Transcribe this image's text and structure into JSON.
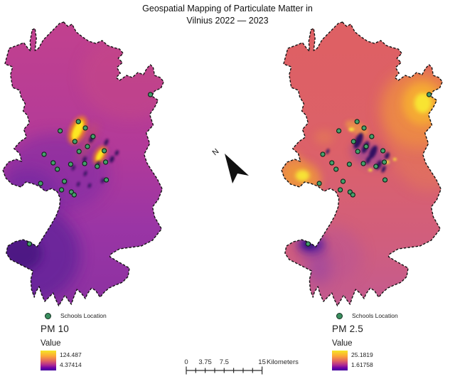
{
  "title": "Geospatial Mapping of Particulate Matter in Vilnius 2022 — 2023",
  "north_label": "N",
  "maps": [
    {
      "name": "PM 10",
      "legend": {
        "schools_label": "Schools Location",
        "value_label": "Value",
        "max": "124.487",
        "min": "4.37414"
      }
    },
    {
      "name": "PM 2.5",
      "legend": {
        "schools_label": "Schools Location",
        "value_label": "Value",
        "max": "25.1819",
        "min": "1.61758"
      }
    }
  ],
  "scale_bar": {
    "tick_labels": [
      "0",
      "3.75",
      "7.5",
      "15"
    ],
    "unit": "Kilometers"
  },
  "schools_xy": [
    [
      112,
      143
    ],
    [
      122,
      152
    ],
    [
      86,
      156
    ],
    [
      133,
      164
    ],
    [
      107,
      171
    ],
    [
      125,
      178
    ],
    [
      113,
      185
    ],
    [
      149,
      184
    ],
    [
      63,
      189
    ],
    [
      76,
      201
    ],
    [
      101,
      203
    ],
    [
      121,
      202
    ],
    [
      139,
      206
    ],
    [
      151,
      200
    ],
    [
      82,
      210
    ],
    [
      92,
      227
    ],
    [
      152,
      225
    ],
    [
      58,
      230
    ],
    [
      88,
      239
    ],
    [
      102,
      242
    ],
    [
      106,
      246
    ],
    [
      42,
      315
    ],
    [
      215,
      105
    ]
  ],
  "colors": {
    "school_dot": "#44a06b",
    "boundary": "#141414",
    "ramp": [
      "#f5e626",
      "#fca636",
      "#e16462",
      "#b12a90",
      "#6a00a8",
      "#41049d"
    ],
    "pm10_base": [
      "#c2418e",
      "#8c31a1"
    ],
    "pm25_base": [
      "#de6063",
      "#c35a90"
    ],
    "hotspot": "#fce724"
  },
  "chart_data": {
    "type": "heatmap",
    "title": "Geospatial Mapping of Particulate Matter in Vilnius 2022 — 2023",
    "panels": [
      {
        "label": "PM 10",
        "value_range": [
          4.37414,
          124.487
        ]
      },
      {
        "label": "PM 2.5",
        "value_range": [
          1.61758,
          25.1819
        ]
      }
    ],
    "points_layer": "Schools Location",
    "points_count": 23,
    "scale_km": [
      0,
      3.75,
      7.5,
      15
    ]
  }
}
